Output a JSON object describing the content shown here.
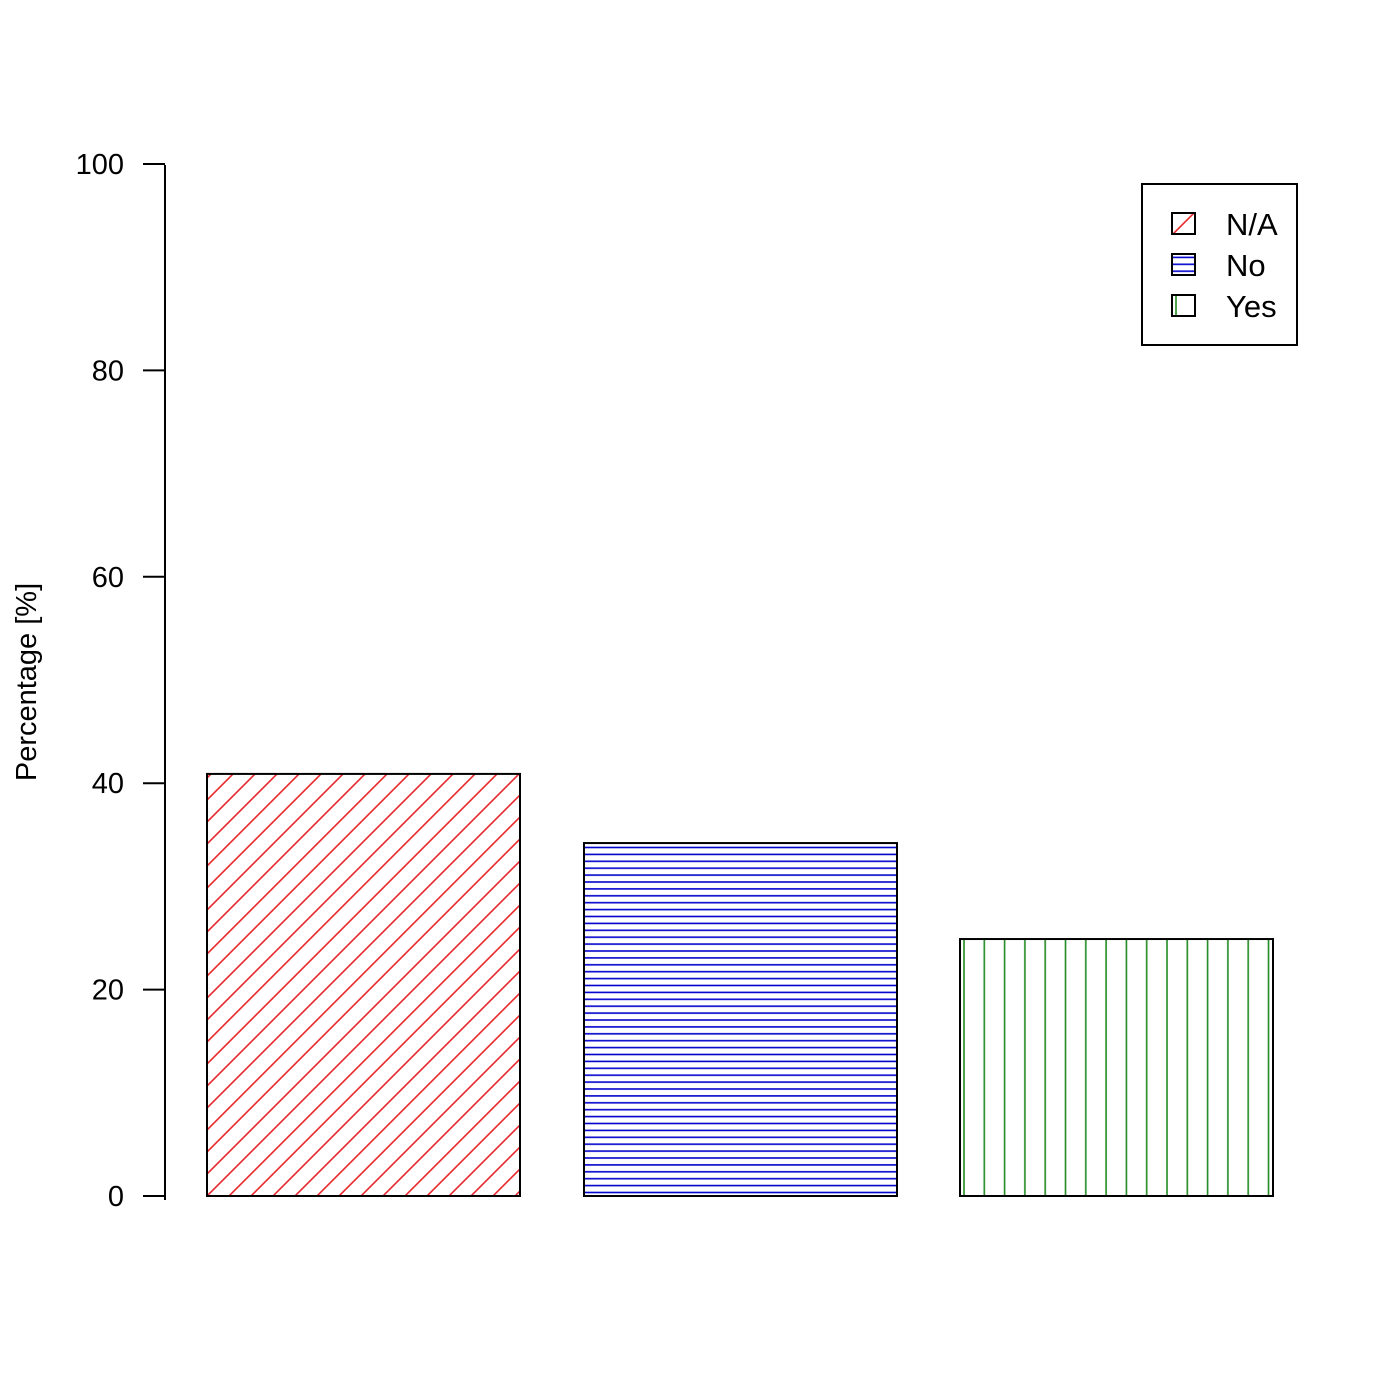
{
  "chart_data": {
    "type": "bar",
    "categories": [
      "N/A",
      "No",
      "Yes"
    ],
    "values": [
      40.9,
      34.2,
      24.9
    ],
    "title": "",
    "xlabel": "",
    "ylabel": "Percentage [%]",
    "ylim": [
      0,
      100
    ],
    "yticks": [
      0,
      20,
      40,
      60,
      80,
      100
    ],
    "grid": false,
    "legend": {
      "position": "top-right",
      "entries": [
        "N/A",
        "No",
        "Yes"
      ]
    },
    "colors": [
      "#e8262b",
      "#0000cc",
      "#208a20"
    ],
    "fill_patterns": [
      "diagonal",
      "horizontal",
      "vertical"
    ]
  }
}
